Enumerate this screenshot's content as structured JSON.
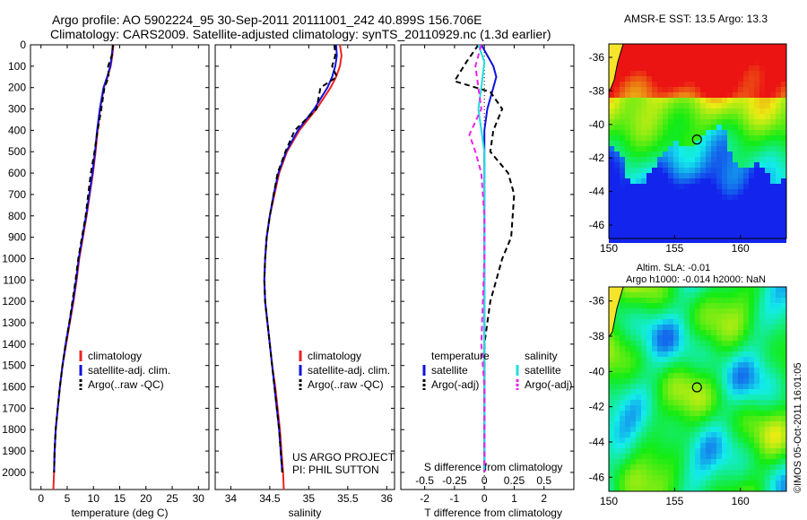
{
  "title_line1": "Argo profile: AO 5902224_95 30-Sep-2011 20111001_242 40.899S 156.706E",
  "title_line2": "Climatology: CARS2009. Satellite-adjusted climatology: synTS_20110929.nc (1.3d earlier)",
  "watermark": "©IMOS 05-Oct-2011 16:01:05",
  "colors": {
    "climatology": "#ee2222",
    "satellite": "#1111dd",
    "argo": "#000000",
    "s_satellite": "#22dddd",
    "s_argo": "#ee22ee"
  },
  "chart_data": [
    {
      "type": "line",
      "xlabel": "temperature (deg C)",
      "ylabel": "",
      "xlim": [
        -2,
        32
      ],
      "ylim": [
        2080,
        0
      ],
      "xticks": [
        0,
        5,
        10,
        15,
        20,
        25,
        30
      ],
      "yticks": [
        0,
        100,
        200,
        300,
        400,
        500,
        600,
        700,
        800,
        900,
        1000,
        1100,
        1200,
        1300,
        1400,
        1500,
        1600,
        1700,
        1800,
        1900,
        2000
      ],
      "legend": [
        "climatology",
        "satellite-adj. clim.",
        "Argo(..raw -QC)"
      ],
      "series": [
        {
          "name": "climatology",
          "color": "#ee2222",
          "dash": "",
          "x": [
            13.8,
            13.6,
            13.3,
            12.7,
            12.0,
            11.3,
            10.8,
            10.4,
            9.9,
            9.3,
            8.7,
            8.0,
            7.3,
            6.8,
            6.2,
            5.5,
            4.8,
            4.1,
            3.6,
            3.2,
            2.8,
            2.6,
            2.5,
            2.4,
            2.35
          ],
          "y": [
            0,
            50,
            100,
            150,
            200,
            300,
            400,
            500,
            600,
            700,
            800,
            900,
            1000,
            1100,
            1200,
            1300,
            1400,
            1500,
            1600,
            1700,
            1800,
            1900,
            2000,
            2050,
            2080
          ]
        },
        {
          "name": "satellite-adj. clim.",
          "color": "#1111dd",
          "dash": "",
          "x": [
            13.7,
            13.5,
            13.2,
            12.6,
            11.9,
            11.2,
            10.7,
            10.3,
            9.8,
            9.2,
            8.6,
            7.9,
            7.2,
            6.7,
            6.1,
            5.4,
            4.7,
            4.1,
            3.6,
            3.2,
            2.8,
            2.6,
            2.5
          ],
          "y": [
            0,
            50,
            100,
            150,
            200,
            300,
            400,
            500,
            600,
            700,
            800,
            900,
            1000,
            1100,
            1200,
            1300,
            1400,
            1500,
            1600,
            1700,
            1800,
            1900,
            2000
          ]
        },
        {
          "name": "Argo(..raw -QC)",
          "color": "#000000",
          "dash": "6,4",
          "x": [
            13.7,
            13.5,
            12.8,
            12.9,
            12.1,
            11.5,
            10.8,
            10.2,
            9.5,
            9.0,
            8.5,
            7.8,
            7.1,
            6.6,
            6.0,
            5.4,
            4.7,
            4.1,
            3.6,
            3.2,
            2.8,
            2.6,
            2.5
          ],
          "y": [
            0,
            50,
            100,
            150,
            200,
            300,
            400,
            500,
            600,
            700,
            800,
            900,
            1000,
            1100,
            1200,
            1300,
            1400,
            1500,
            1600,
            1700,
            1800,
            1900,
            2000
          ]
        }
      ]
    },
    {
      "type": "line",
      "xlabel": "salinity",
      "ylabel": "",
      "xlim": [
        33.8,
        36.1
      ],
      "ylim": [
        2080,
        0
      ],
      "xticks": [
        34,
        34.5,
        35,
        35.5,
        36
      ],
      "legend": [
        "climatology",
        "satellite-adj. clim.",
        "Argo(..raw -QC)"
      ],
      "annotation": [
        "US ARGO PROJECT",
        "PI: PHIL SUTTON"
      ],
      "series": [
        {
          "name": "climatology",
          "color": "#ee2222",
          "dash": "",
          "x": [
            35.4,
            35.42,
            35.4,
            35.35,
            35.28,
            35.1,
            34.88,
            34.72,
            34.62,
            34.56,
            34.5,
            34.46,
            34.44,
            34.43,
            34.44,
            34.47,
            34.5,
            34.53,
            34.57,
            34.6,
            34.63,
            34.65,
            34.67,
            34.68
          ],
          "y": [
            0,
            50,
            100,
            150,
            200,
            300,
            400,
            500,
            600,
            700,
            800,
            900,
            1000,
            1100,
            1200,
            1300,
            1400,
            1500,
            1600,
            1700,
            1800,
            1900,
            2000,
            2080
          ]
        },
        {
          "name": "satellite-adj. clim.",
          "color": "#1111dd",
          "dash": "",
          "x": [
            35.35,
            35.36,
            35.34,
            35.3,
            35.24,
            35.07,
            34.86,
            34.71,
            34.61,
            34.55,
            34.5,
            34.46,
            34.44,
            34.43,
            34.44,
            34.47,
            34.5,
            34.53,
            34.56,
            34.59,
            34.62,
            34.64,
            34.66
          ],
          "y": [
            0,
            50,
            100,
            150,
            200,
            300,
            400,
            500,
            600,
            700,
            800,
            900,
            1000,
            1100,
            1200,
            1300,
            1400,
            1500,
            1600,
            1700,
            1800,
            1900,
            2000
          ]
        },
        {
          "name": "Argo(..raw -QC)",
          "color": "#000000",
          "dash": "6,4",
          "x": [
            35.33,
            35.34,
            35.3,
            35.36,
            35.15,
            35.1,
            34.82,
            34.7,
            34.6,
            34.55,
            34.5,
            34.46,
            34.44,
            34.43,
            34.44,
            34.47,
            34.5,
            34.53,
            34.56,
            34.59,
            34.62,
            34.64,
            34.66
          ],
          "y": [
            0,
            50,
            100,
            150,
            200,
            300,
            400,
            500,
            600,
            700,
            800,
            900,
            1000,
            1100,
            1200,
            1300,
            1400,
            1500,
            1600,
            1700,
            1800,
            1900,
            2000
          ]
        }
      ]
    },
    {
      "type": "line",
      "xlabel": "T difference from climatology",
      "xlabel2": "S difference from climatology",
      "xlim": [
        -2.8,
        3.0
      ],
      "ylim": [
        2080,
        0
      ],
      "xticks": [
        -2,
        -1,
        0,
        1,
        2
      ],
      "xticks2_labels": [
        "-0.5",
        "-0.25",
        "0",
        "0.25",
        "0.5"
      ],
      "xticks2_pos": [
        -2,
        -1,
        0,
        1,
        2
      ],
      "legend_temp_title": "temperature",
      "legend_sal_title": "salinity",
      "legend_temp": [
        "satellite",
        "Argo(-adj)"
      ],
      "legend_sal": [
        "satellite",
        "Argo(-adj)"
      ],
      "series": [
        {
          "name": "satellite",
          "color": "#1111dd",
          "dash": "",
          "x": [
            -0.1,
            0.1,
            0.3,
            0.4,
            0.3,
            0.1,
            0.0,
            0.0,
            0.0,
            0.0,
            0.0,
            0.0,
            0.0,
            0.0,
            0.0,
            0.0,
            0.0,
            0.0,
            0.0,
            0.0
          ],
          "y": [
            0,
            50,
            100,
            150,
            200,
            300,
            400,
            500,
            700,
            900,
            1000,
            1100,
            1200,
            1300,
            1400,
            1500,
            1600,
            1800,
            1900,
            2000
          ]
        },
        {
          "name": "Argo(-adj)",
          "color": "#000000",
          "dash": "6,4",
          "x": [
            -0.2,
            -0.6,
            -1.0,
            0.2,
            0.6,
            0.3,
            0.2,
            0.8,
            1.0,
            0.9,
            0.6,
            0.4,
            0.2,
            0.1,
            0.0,
            0.0,
            0.0,
            0.0,
            0.0
          ],
          "y": [
            0,
            80,
            170,
            220,
            300,
            400,
            500,
            600,
            700,
            900,
            1000,
            1100,
            1200,
            1300,
            1400,
            1500,
            1600,
            1800,
            2000
          ]
        },
        {
          "name": "satellite",
          "color": "#22dddd",
          "dash": "",
          "x": [
            -0.2,
            0.0,
            -0.1,
            -0.2,
            -0.1,
            0.0,
            0.0,
            0.0,
            0.0,
            0.0,
            0.0,
            0.0,
            0.0,
            0.0,
            0.0
          ],
          "y": [
            0,
            80,
            200,
            300,
            400,
            500,
            700,
            900,
            1100,
            1300,
            1500,
            1700,
            1800,
            1900,
            2000
          ]
        },
        {
          "name": "Argo(-adj)",
          "color": "#ee22ee",
          "dash": "6,4",
          "x": [
            -0.1,
            -0.3,
            -0.2,
            -0.1,
            -0.5,
            -0.3,
            -0.1,
            0.0,
            0.0,
            -0.1,
            0.0,
            0.0,
            0.0
          ],
          "y": [
            0,
            100,
            200,
            300,
            420,
            500,
            600,
            800,
            1000,
            1400,
            1600,
            1800,
            2000
          ]
        }
      ]
    }
  ],
  "maps": [
    {
      "title": "AMSR-E SST: 13.5 Argo: 13.3",
      "xlim": [
        150,
        163.5
      ],
      "ylim": [
        -46.8,
        -35.2
      ],
      "xticks": [
        150,
        155,
        160
      ],
      "yticks": [
        -36,
        -38,
        -40,
        -42,
        -44,
        -46
      ],
      "marker": [
        156.7,
        -40.9
      ],
      "scheme": "sst"
    },
    {
      "title_line1": "Altim. SLA: -0.01",
      "title_line2": "Argo h1000: -0.014 h2000: NaN",
      "xlim": [
        150,
        163.5
      ],
      "ylim": [
        -46.8,
        -35.2
      ],
      "xticks": [
        150,
        155,
        160
      ],
      "yticks": [
        -36,
        -38,
        -40,
        -42,
        -44,
        -46
      ],
      "marker": [
        156.7,
        -40.9
      ],
      "scheme": "sla"
    }
  ]
}
